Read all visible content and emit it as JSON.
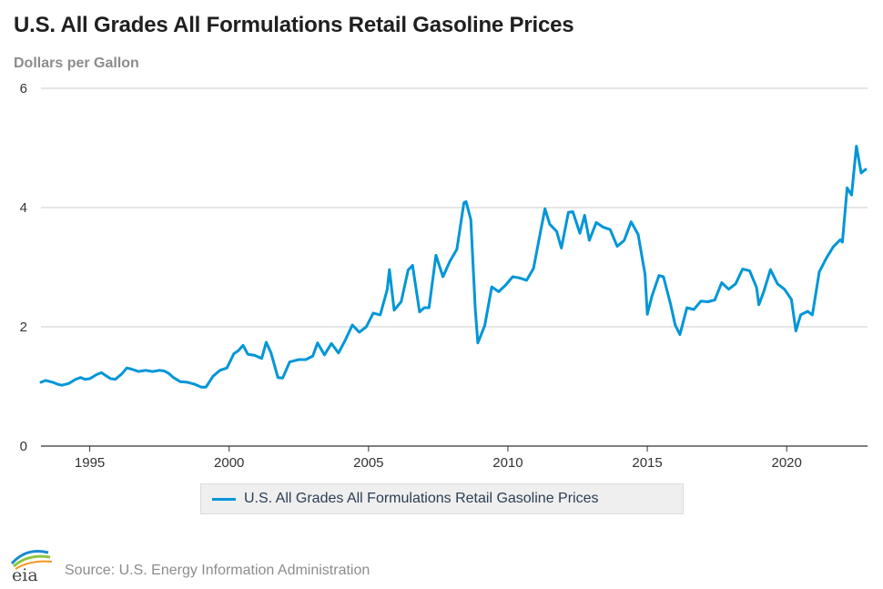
{
  "header": {
    "title": "U.S. All Grades All Formulations Retail Gasoline Prices",
    "y_unit": "Dollars per Gallon"
  },
  "footer": {
    "source": "Source: U.S. Energy Information Administration",
    "logo_text": "eia"
  },
  "colors": {
    "series": "#0096d7",
    "grid": "#cccccc",
    "axis": "#333333"
  },
  "chart_data": {
    "type": "line",
    "title": "U.S. All Grades All Formulations Retail Gasoline Prices",
    "ylabel": "Dollars per Gallon",
    "xlabel": "",
    "xlim": [
      1993.25,
      2022.9
    ],
    "ylim": [
      0,
      6
    ],
    "y_ticks": [
      "0",
      "2",
      "4",
      "6"
    ],
    "x_ticks": [
      "1995",
      "2000",
      "2005",
      "2010",
      "2015",
      "2020"
    ],
    "grid": true,
    "legend_position": "bottom-center",
    "series": [
      {
        "name": "U.S. All Grades All Formulations Retail Gasoline Prices",
        "x": [
          1993.25,
          1993.42,
          1993.67,
          1993.83,
          1994.0,
          1994.25,
          1994.5,
          1994.67,
          1994.83,
          1995.0,
          1995.25,
          1995.42,
          1995.58,
          1995.75,
          1995.92,
          1996.17,
          1996.33,
          1996.5,
          1996.75,
          1997.0,
          1997.25,
          1997.5,
          1997.67,
          1997.83,
          1998.0,
          1998.25,
          1998.5,
          1998.75,
          1999.0,
          1999.17,
          1999.42,
          1999.67,
          1999.92,
          2000.17,
          2000.33,
          2000.5,
          2000.67,
          2000.92,
          2001.17,
          2001.33,
          2001.5,
          2001.75,
          2001.92,
          2002.17,
          2002.33,
          2002.5,
          2002.75,
          2003.0,
          2003.17,
          2003.42,
          2003.67,
          2003.92,
          2004.17,
          2004.42,
          2004.67,
          2004.92,
          2005.17,
          2005.42,
          2005.67,
          2005.75,
          2005.92,
          2006.17,
          2006.42,
          2006.58,
          2006.83,
          2007.0,
          2007.17,
          2007.42,
          2007.67,
          2007.92,
          2008.17,
          2008.42,
          2008.5,
          2008.67,
          2008.83,
          2008.92,
          2009.17,
          2009.42,
          2009.67,
          2009.92,
          2010.17,
          2010.42,
          2010.67,
          2010.92,
          2011.17,
          2011.33,
          2011.5,
          2011.75,
          2011.92,
          2012.17,
          2012.33,
          2012.58,
          2012.75,
          2012.92,
          2013.17,
          2013.42,
          2013.67,
          2013.92,
          2014.17,
          2014.42,
          2014.67,
          2014.92,
          2015.0,
          2015.17,
          2015.42,
          2015.58,
          2015.83,
          2016.0,
          2016.17,
          2016.42,
          2016.67,
          2016.92,
          2017.17,
          2017.42,
          2017.67,
          2017.92,
          2018.17,
          2018.42,
          2018.67,
          2018.92,
          2019.0,
          2019.17,
          2019.42,
          2019.67,
          2019.92,
          2020.17,
          2020.33,
          2020.5,
          2020.75,
          2020.92,
          2021.17,
          2021.42,
          2021.67,
          2021.92,
          2022.0,
          2022.17,
          2022.33,
          2022.5,
          2022.67,
          2022.83
        ],
        "values": [
          1.07,
          1.1,
          1.07,
          1.04,
          1.02,
          1.05,
          1.12,
          1.15,
          1.12,
          1.13,
          1.2,
          1.23,
          1.18,
          1.13,
          1.12,
          1.22,
          1.31,
          1.29,
          1.25,
          1.27,
          1.25,
          1.27,
          1.26,
          1.22,
          1.15,
          1.08,
          1.07,
          1.04,
          0.99,
          0.99,
          1.17,
          1.27,
          1.31,
          1.55,
          1.6,
          1.69,
          1.54,
          1.52,
          1.47,
          1.74,
          1.57,
          1.15,
          1.14,
          1.41,
          1.43,
          1.45,
          1.45,
          1.51,
          1.73,
          1.53,
          1.72,
          1.56,
          1.78,
          2.03,
          1.91,
          2.0,
          2.23,
          2.2,
          2.62,
          2.96,
          2.28,
          2.42,
          2.95,
          3.03,
          2.25,
          2.32,
          2.32,
          3.2,
          2.84,
          3.1,
          3.3,
          4.08,
          4.1,
          3.8,
          2.3,
          1.73,
          2.02,
          2.67,
          2.59,
          2.7,
          2.84,
          2.82,
          2.78,
          2.98,
          3.6,
          3.98,
          3.72,
          3.6,
          3.32,
          3.92,
          3.93,
          3.57,
          3.87,
          3.45,
          3.75,
          3.67,
          3.63,
          3.35,
          3.45,
          3.76,
          3.55,
          2.88,
          2.21,
          2.52,
          2.86,
          2.84,
          2.39,
          2.03,
          1.87,
          2.32,
          2.29,
          2.43,
          2.42,
          2.45,
          2.74,
          2.63,
          2.72,
          2.97,
          2.94,
          2.66,
          2.37,
          2.58,
          2.96,
          2.72,
          2.63,
          2.46,
          1.93,
          2.2,
          2.26,
          2.2,
          2.92,
          3.15,
          3.34,
          3.46,
          3.42,
          4.33,
          4.21,
          5.03,
          4.58,
          4.64
        ]
      }
    ]
  }
}
